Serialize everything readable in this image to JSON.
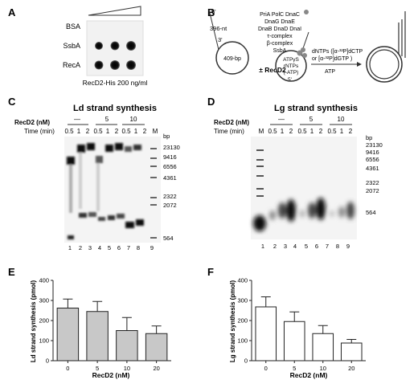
{
  "panelA": {
    "letter": "A",
    "rows": [
      "BSA",
      "SsbA",
      "RecA"
    ],
    "caption": "RecD2-His 200 ng/ml"
  },
  "panelB": {
    "letter": "B",
    "label_5prime": "5'",
    "label_3prime": "3'",
    "label_396nt": "396-nt",
    "label_409bp": "409-bp",
    "proteins": [
      "PriA  PolC  DnaC",
      "DnaG   DnaE",
      "DnaB  DnaD  DnaI",
      "τ-complex",
      "β-complex",
      "SsbA"
    ],
    "cofactors": [
      "ATPγS",
      "rNTPs",
      "(-ATP)"
    ],
    "label_5prime_b": "5'",
    "plus_recd2": "± RecD2",
    "substrates": [
      "dNTPs ([α-³²P]dCTP",
      "or [α-³²P]dGTP )"
    ],
    "atp": "ATP"
  },
  "panelC": {
    "letter": "C",
    "title": "Ld strand synthesis",
    "recd2_label": "RecD2 (nM)",
    "time_label": "Time (min)",
    "recd2_values": [
      "—",
      "5",
      "10"
    ],
    "times": [
      "0.5",
      "1",
      "2",
      "0.5",
      "1",
      "2",
      "0.5",
      "1",
      "2"
    ],
    "marker_lane": "M",
    "bp_label": "bp",
    "markers": [
      "23130",
      "9416",
      "6556",
      "4361",
      "2322",
      "2072",
      "564"
    ],
    "lane_numbers": [
      "1",
      "2",
      "3",
      "4",
      "5",
      "6",
      "7",
      "8",
      "9"
    ]
  },
  "panelD": {
    "letter": "D",
    "title": "Lg strand synthesis",
    "recd2_label": "RecD2 (nM)",
    "time_label": "Time (min)",
    "recd2_values": [
      "—",
      "5",
      "10"
    ],
    "marker_lane": "M",
    "times": [
      "0.5",
      "1",
      "2",
      "0.5",
      "1",
      "2",
      "0.5",
      "1",
      "2"
    ],
    "bp_label": "bp",
    "markers": [
      "23130",
      "9416",
      "6556",
      "4361",
      "2322",
      "2072",
      "564"
    ],
    "lane_numbers": [
      "1",
      "2",
      "3",
      "4",
      "5",
      "6",
      "7",
      "8",
      "9"
    ]
  },
  "panelE": {
    "letter": "E",
    "chart_data": {
      "type": "bar",
      "categories": [
        "0",
        "5",
        "10",
        "20"
      ],
      "values": [
        262,
        245,
        150,
        135
      ],
      "errors": [
        45,
        50,
        65,
        38
      ],
      "xlabel": "RecD2 (nM)",
      "ylabel": "Ld strand synthesis (pmol)",
      "ylim": [
        0,
        400
      ],
      "yticks": [
        0,
        100,
        200,
        300,
        400
      ],
      "bar_color": "#c8c8c8"
    }
  },
  "panelF": {
    "letter": "F",
    "chart_data": {
      "type": "bar",
      "categories": [
        "0",
        "5",
        "10",
        "20"
      ],
      "values": [
        268,
        195,
        135,
        88
      ],
      "errors": [
        50,
        48,
        40,
        18
      ],
      "xlabel": "RecD2 (nM)",
      "ylabel": "Lg strand synthesis (pmol)",
      "ylim": [
        0,
        400
      ],
      "yticks": [
        0,
        100,
        200,
        300,
        400
      ],
      "bar_color": "#ffffff"
    }
  }
}
